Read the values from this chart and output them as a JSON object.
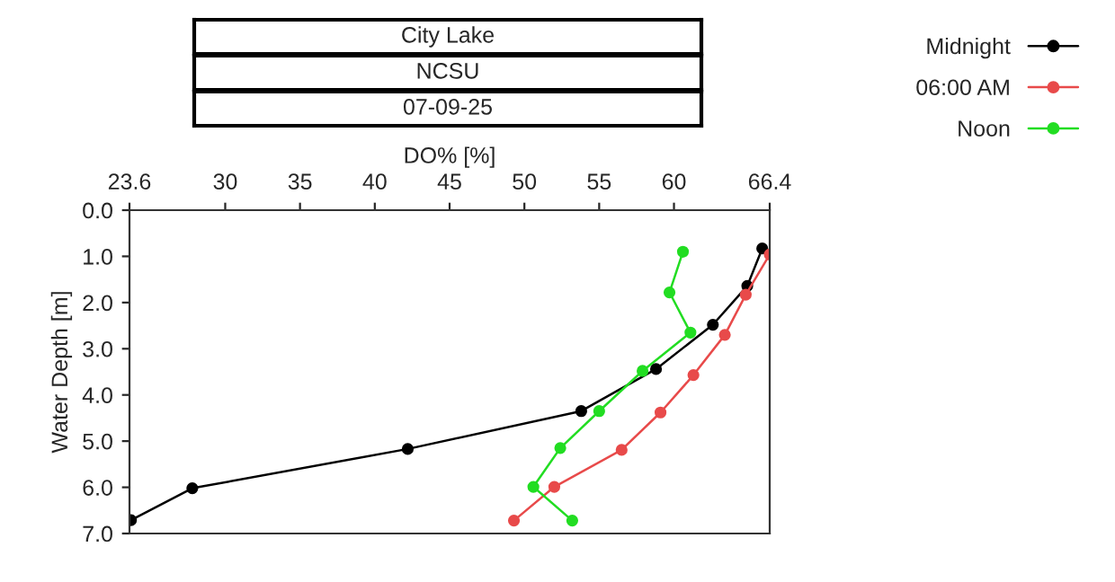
{
  "chart_data": {
    "type": "line",
    "title": "City Lake",
    "subtitle": "NCSU",
    "annotations": [
      "07-09-25"
    ],
    "xlabel": "DO% [%]",
    "ylabel": "Water Depth [m]",
    "xlim": [
      23.6,
      66.4
    ],
    "xticks": [
      23.6,
      30,
      35,
      40,
      45,
      50,
      55,
      60,
      66.4
    ],
    "ylim": [
      7.0,
      0.0
    ],
    "yticks": [
      {
        "value": 0,
        "label": "0.0"
      },
      {
        "value": 1,
        "label": "1.0"
      },
      {
        "value": 2,
        "label": "2.0"
      },
      {
        "value": 3,
        "label": "3.0"
      },
      {
        "value": 4,
        "label": "4.0"
      },
      {
        "value": 5,
        "label": "5.0"
      },
      {
        "value": 6,
        "label": "6.0"
      },
      {
        "value": 7,
        "label": "7.0"
      }
    ],
    "grid": false,
    "legend": "top right",
    "marker": "circle",
    "line_style": "solid",
    "series": [
      {
        "name": "Midnight",
        "color": "#000000",
        "x": [
          65.9,
          64.9,
          62.6,
          58.8,
          53.8,
          42.2,
          27.8,
          23.7
        ],
        "values": [
          0.83,
          1.64,
          2.48,
          3.44,
          4.35,
          5.17,
          6.02,
          6.71
        ]
      },
      {
        "name": "06:00 AM",
        "color": "#e84a4a",
        "x": [
          66.4,
          64.8,
          63.4,
          61.3,
          59.1,
          56.5,
          52.0,
          49.3
        ],
        "values": [
          0.96,
          1.83,
          2.7,
          3.57,
          4.38,
          5.19,
          5.99,
          6.72
        ]
      },
      {
        "name": "Noon",
        "color": "#22dd22",
        "x": [
          60.6,
          59.7,
          61.1,
          57.9,
          55.0,
          52.4,
          50.6,
          53.2
        ],
        "values": [
          0.9,
          1.78,
          2.65,
          3.48,
          4.35,
          5.15,
          5.99,
          6.72
        ]
      }
    ]
  }
}
